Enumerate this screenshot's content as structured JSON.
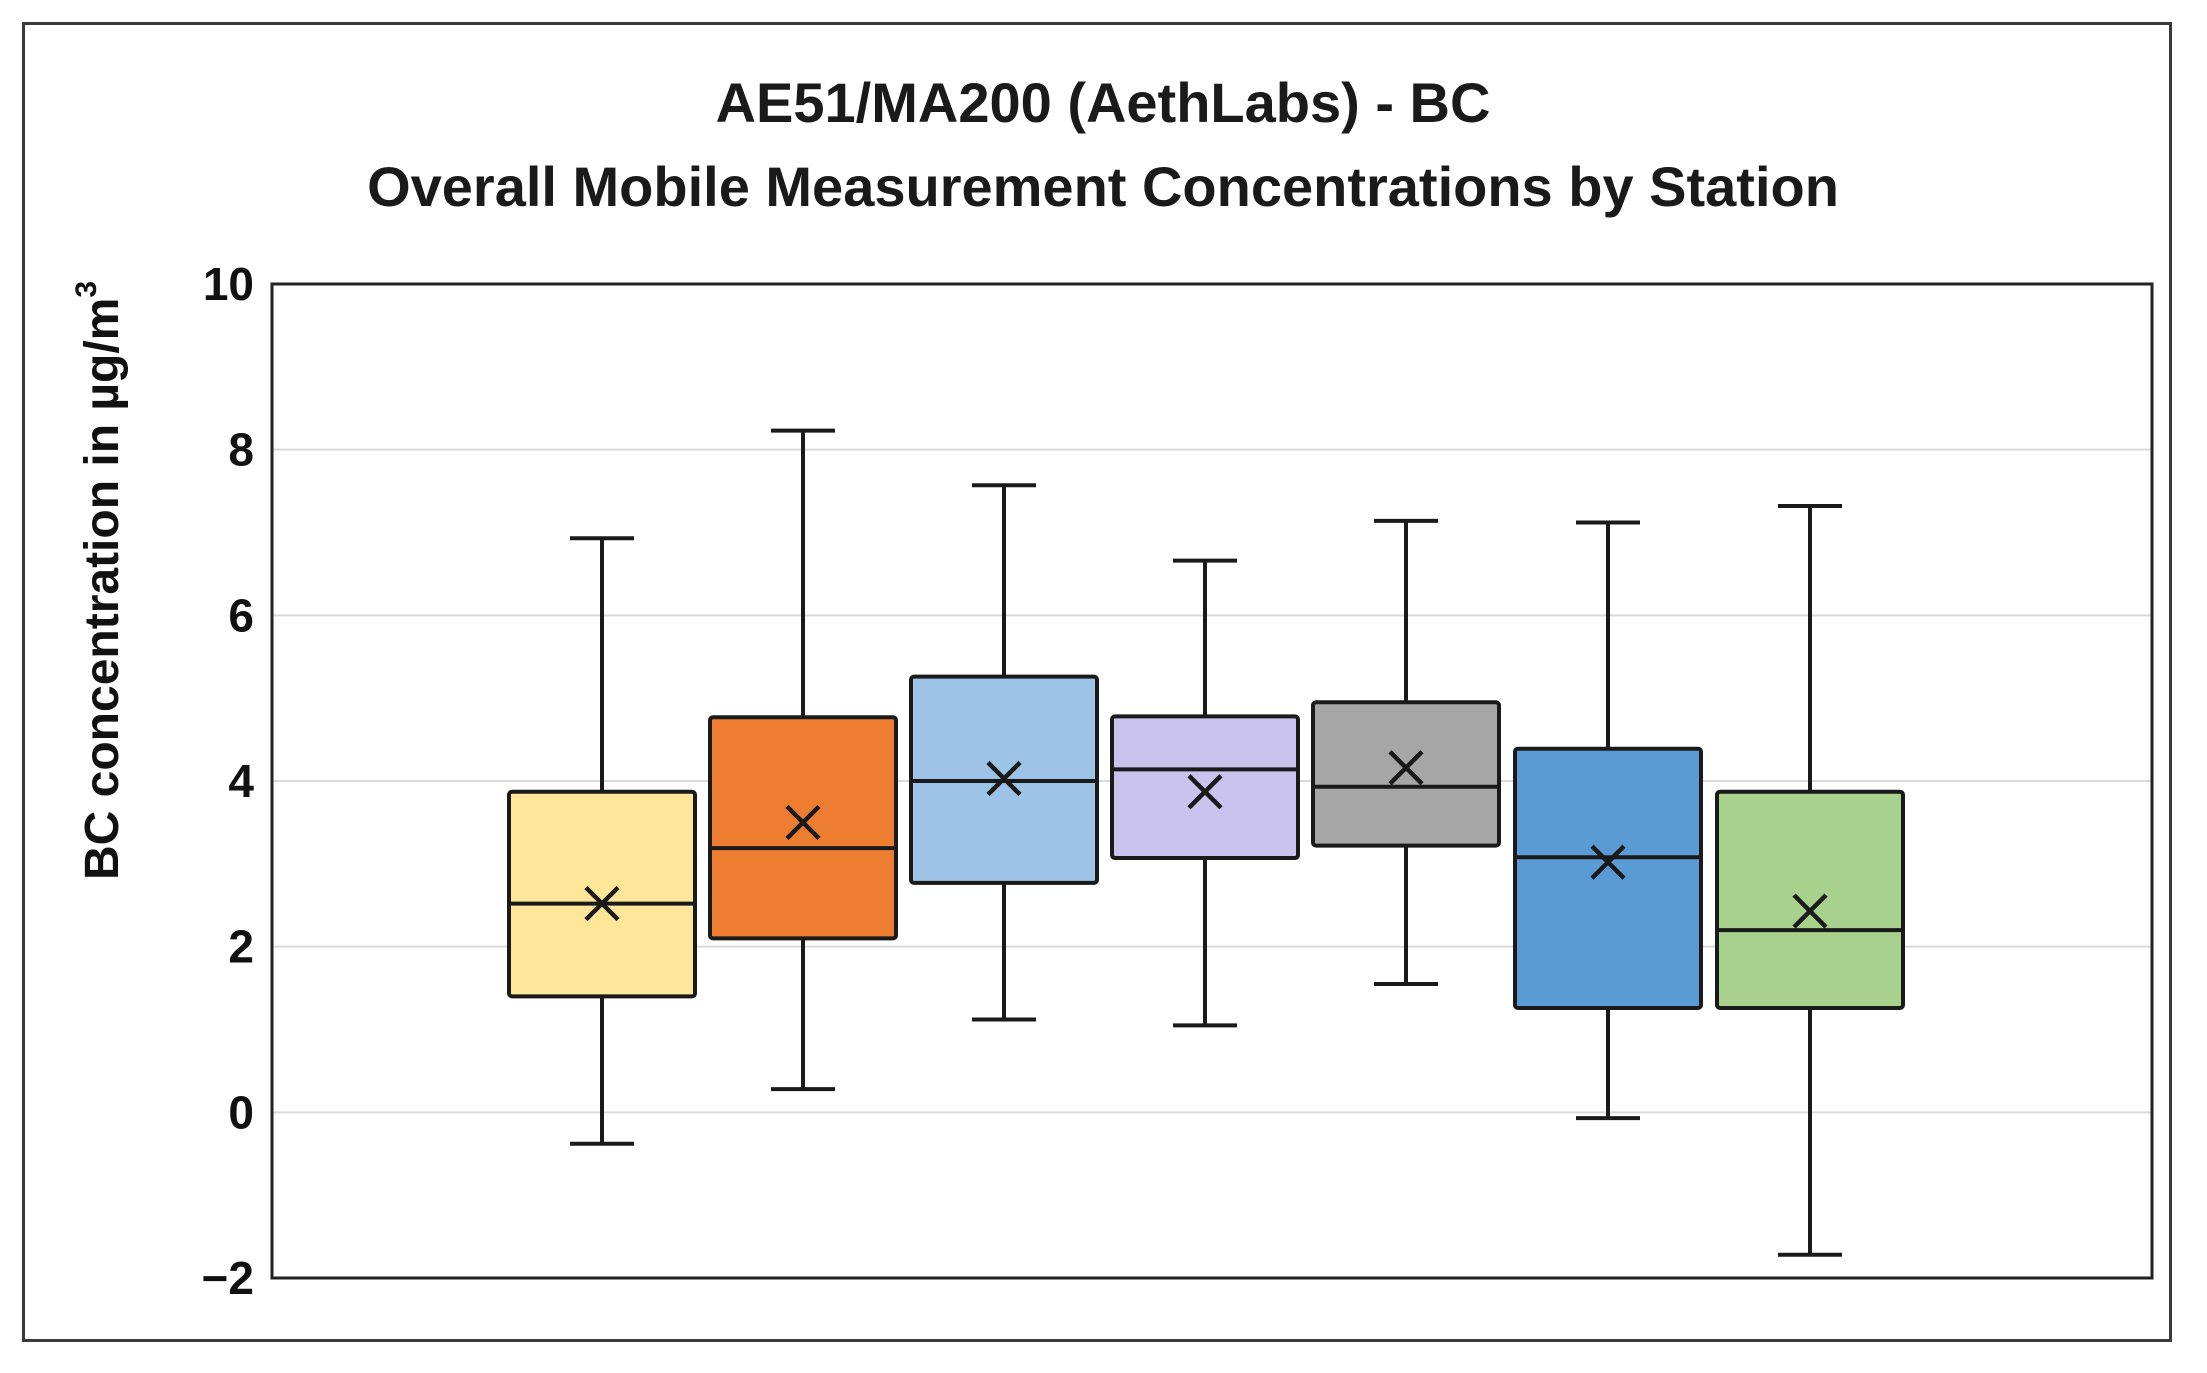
{
  "chart_data": {
    "type": "box",
    "title": "AE51/MA200 (AethLabs) - BC",
    "subtitle": "Overall Mobile Measurement Concentrations by Station",
    "xlabel": "",
    "ylabel": "BC concentration in µg/m",
    "ylabel_superscript": "3",
    "ylim": [
      -2,
      10
    ],
    "yticks": [
      -2,
      0,
      2,
      4,
      6,
      8,
      10
    ],
    "ytick_labels": [
      "−2",
      "0",
      "2",
      "4",
      "6",
      "8",
      "10"
    ],
    "grid": true,
    "legend": "none",
    "series": [
      {
        "color": "#FFE699",
        "min": -0.38,
        "q1": 1.4,
        "median": 2.52,
        "q3": 3.87,
        "max": 6.93,
        "mean": 2.52
      },
      {
        "color": "#ED7D31",
        "min": 0.28,
        "q1": 2.1,
        "median": 3.19,
        "q3": 4.77,
        "max": 8.23,
        "mean": 3.5
      },
      {
        "color": "#9DC3E6",
        "min": 1.12,
        "q1": 2.77,
        "median": 4.0,
        "q3": 5.26,
        "max": 7.57,
        "mean": 4.03
      },
      {
        "color": "#C9C3EE",
        "min": 1.05,
        "q1": 3.07,
        "median": 4.14,
        "q3": 4.78,
        "max": 6.66,
        "mean": 3.87
      },
      {
        "color": "#A6A6A6",
        "min": 1.55,
        "q1": 3.22,
        "median": 3.93,
        "q3": 4.95,
        "max": 7.14,
        "mean": 4.16
      },
      {
        "color": "#5B9BD5",
        "min": -0.07,
        "q1": 1.26,
        "median": 3.08,
        "q3": 4.39,
        "max": 7.12,
        "mean": 3.02
      },
      {
        "color": "#A9D18E",
        "min": -1.72,
        "q1": 1.26,
        "median": 2.2,
        "q3": 3.87,
        "max": 7.32,
        "mean": 2.43
      }
    ]
  },
  "colors": {
    "plot_border": "#222222",
    "grid": "#d9d9d9",
    "box_stroke": "#1a1a1a"
  }
}
